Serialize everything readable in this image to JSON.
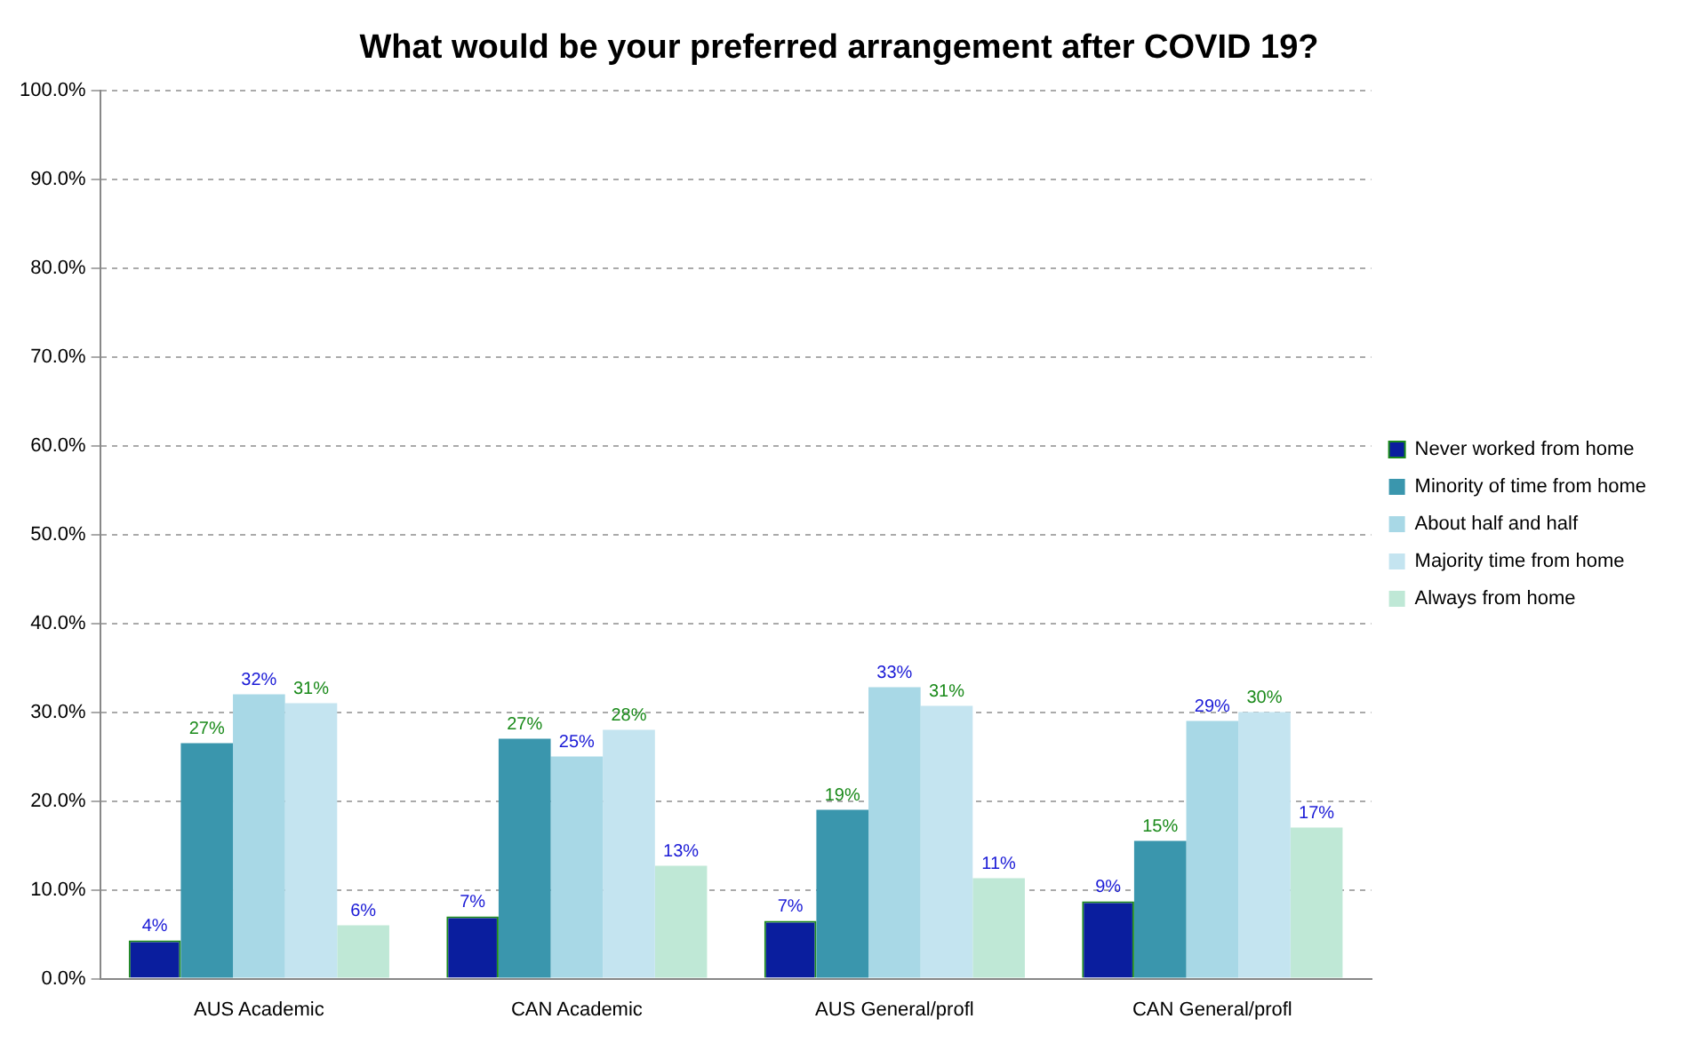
{
  "chart_data": {
    "type": "bar",
    "title": "What would be your preferred arrangement after COVID 19?",
    "categories": [
      "AUS Academic",
      "CAN Academic",
      "AUS General/profl",
      "CAN General/profl"
    ],
    "series": [
      {
        "name": "Never worked from home",
        "color": "#0a1e9e",
        "values": [
          4.3,
          7,
          6.5,
          8.7
        ],
        "value_labels": [
          "4%",
          "7%",
          "7%",
          "9%"
        ]
      },
      {
        "name": "Minority of time from home",
        "color": "#3a96ad",
        "values": [
          26.5,
          27,
          19,
          15.5
        ],
        "value_labels": [
          "27%",
          "27%",
          "19%",
          "15%"
        ]
      },
      {
        "name": "About half and half",
        "color": "#a8d8e6",
        "values": [
          32,
          25,
          32.8,
          29
        ],
        "value_labels": [
          "32%",
          "25%",
          "33%",
          "29%"
        ]
      },
      {
        "name": "Majority time from home",
        "color": "#c4e4f0",
        "values": [
          31,
          28,
          30.7,
          30
        ],
        "value_labels": [
          "31%",
          "28%",
          "31%",
          "30%"
        ]
      },
      {
        "name": "Always from home",
        "color": "#bfe8d6",
        "values": [
          6,
          12.7,
          11.3,
          17
        ],
        "value_labels": [
          "6%",
          "13%",
          "11%",
          "17%"
        ]
      }
    ],
    "ylim": [
      0,
      100
    ],
    "yticks": [
      {
        "value": 0,
        "label": "0.0%"
      },
      {
        "value": 10,
        "label": "10.0%"
      },
      {
        "value": 20,
        "label": "20.0%"
      },
      {
        "value": 30,
        "label": "30.0%"
      },
      {
        "value": 40,
        "label": "40.0%"
      },
      {
        "value": 50,
        "label": "50.0%"
      },
      {
        "value": 60,
        "label": "60.0%"
      },
      {
        "value": 70,
        "label": "70.0%"
      },
      {
        "value": 80,
        "label": "80.0%"
      },
      {
        "value": 90,
        "label": "90.0%"
      },
      {
        "value": 100,
        "label": "100.0%"
      }
    ],
    "grid": "y",
    "legend": "right"
  }
}
